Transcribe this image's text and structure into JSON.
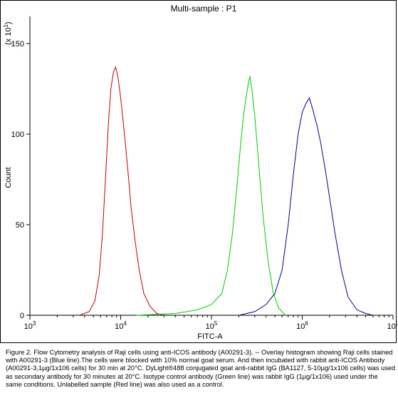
{
  "chart_data": {
    "type": "line",
    "title": "Multi-sample : P1",
    "xlabel": "FITC-A",
    "ylabel": "Count",
    "y_multiplier_label": "(x 10",
    "y_multiplier_exp": "1",
    "y_multiplier_close": ")",
    "x_scale": "log",
    "xlim": [
      1000,
      10000000
    ],
    "ylim": [
      0,
      165
    ],
    "x_ticks": [
      {
        "value": 1000,
        "base": "10",
        "exp": "3"
      },
      {
        "value": 10000,
        "base": "10",
        "exp": "4"
      },
      {
        "value": 100000,
        "base": "10",
        "exp": "5"
      },
      {
        "value": 1000000,
        "base": "10",
        "exp": "6"
      },
      {
        "value": 10000000,
        "base": "10",
        "exp": "7"
      }
    ],
    "y_ticks": [
      0,
      50,
      100,
      150
    ],
    "grid": false,
    "series": [
      {
        "color": "#c00000",
        "points": [
          [
            3500,
            0
          ],
          [
            4500,
            2
          ],
          [
            5200,
            8
          ],
          [
            5800,
            22
          ],
          [
            6300,
            45
          ],
          [
            6800,
            75
          ],
          [
            7300,
            105
          ],
          [
            7800,
            125
          ],
          [
            8300,
            134
          ],
          [
            8800,
            137
          ],
          [
            9300,
            132
          ],
          [
            10000,
            120
          ],
          [
            11000,
            100
          ],
          [
            12000,
            80
          ],
          [
            13000,
            60
          ],
          [
            14500,
            40
          ],
          [
            16000,
            25
          ],
          [
            18000,
            12
          ],
          [
            21000,
            5
          ],
          [
            25000,
            1
          ],
          [
            30000,
            0
          ]
        ]
      },
      {
        "color": "#00cc00",
        "points": [
          [
            15000,
            0
          ],
          [
            40000,
            1
          ],
          [
            70000,
            3
          ],
          [
            100000,
            6
          ],
          [
            130000,
            12
          ],
          [
            150000,
            25
          ],
          [
            170000,
            45
          ],
          [
            190000,
            70
          ],
          [
            210000,
            95
          ],
          [
            225000,
            110
          ],
          [
            240000,
            120
          ],
          [
            255000,
            128
          ],
          [
            265000,
            132
          ],
          [
            280000,
            124
          ],
          [
            300000,
            110
          ],
          [
            330000,
            85
          ],
          [
            370000,
            55
          ],
          [
            420000,
            30
          ],
          [
            480000,
            12
          ],
          [
            550000,
            4
          ],
          [
            650000,
            0
          ]
        ]
      },
      {
        "color": "#00008b",
        "points": [
          [
            200000,
            0
          ],
          [
            300000,
            2
          ],
          [
            400000,
            6
          ],
          [
            500000,
            12
          ],
          [
            600000,
            25
          ],
          [
            700000,
            50
          ],
          [
            800000,
            78
          ],
          [
            900000,
            100
          ],
          [
            1000000,
            112
          ],
          [
            1100000,
            117
          ],
          [
            1200000,
            120
          ],
          [
            1300000,
            114
          ],
          [
            1450000,
            105
          ],
          [
            1600000,
            95
          ],
          [
            1800000,
            80
          ],
          [
            2000000,
            65
          ],
          [
            2300000,
            45
          ],
          [
            2700000,
            25
          ],
          [
            3200000,
            10
          ],
          [
            4000000,
            3
          ],
          [
            5000000,
            1
          ],
          [
            6000000,
            0
          ]
        ]
      }
    ]
  },
  "caption": "Figure 2. Flow Cytometry analysis of Raji cells using anti-ICOS antibody (A00291-3). -- Overlay histogram showing Raji cells stained with A00291-3 (Blue line).The cells were blocked with 10% normal goat serum. And then incubated with rabbit anti-ICOS Antibody (A00291-3,1µg/1x106 cells) for 30 min at 20°C. DyLight®488 conjugated goat anti-rabbit IgG (BA1127, 5-10µg/1x106 cells) was used as secondary antibody for 30 minutes at 20°C. Isotype control antibody (Green line) was rabbit IgG (1µg/1x106) used under the same conditions. Unlabelled sample (Red line) was also used as a control."
}
